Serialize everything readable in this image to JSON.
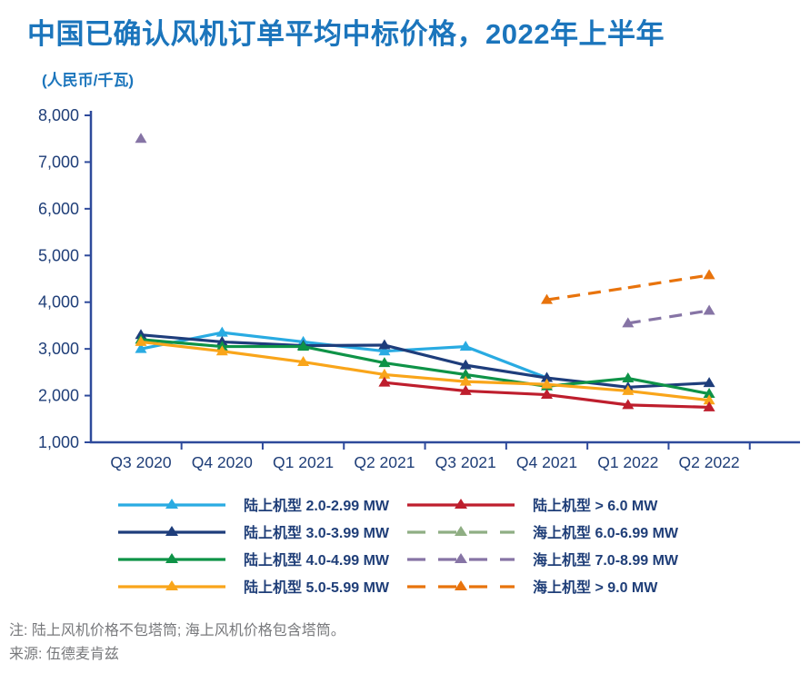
{
  "page": {
    "title": "中国已确认风机订单平均中标价格，2022年上半年",
    "subtitle": "(人民币/千瓦)",
    "note": "注: 陆上风机价格不包塔筒; 海上风机价格包含塔筒。",
    "source": "来源: 伍德麦肯兹"
  },
  "colors": {
    "title_blue": "#1B75BC",
    "axis_line": "#2E4A9B",
    "axis_text": "#1F3E78",
    "note_text": "#77787B"
  },
  "chart_data": {
    "type": "line",
    "title": "中国已确认风机订单平均中标价格，2022年上半年",
    "ylabel": "人民币/千瓦",
    "ylim": [
      1000,
      8000
    ],
    "ytick_step": 1000,
    "ytick_labels": [
      "1,000",
      "2,000",
      "3,000",
      "4,000",
      "5,000",
      "6,000",
      "7,000",
      "8,000"
    ],
    "grid": false,
    "legend_position": "bottom",
    "categories": [
      "Q3 2020",
      "Q4 2020",
      "Q1 2021",
      "Q2 2021",
      "Q3 2021",
      "Q4 2021",
      "Q1 2022",
      "Q2 2022"
    ],
    "series": [
      {
        "name": "陆上机型 2.0-2.99 MW",
        "color": "#29ABE2",
        "dash": false,
        "markers": "all",
        "values": [
          3000,
          3350,
          3150,
          2950,
          3050,
          2380,
          null,
          null
        ]
      },
      {
        "name": "陆上机型 3.0-3.99 MW",
        "color": "#1E3D7B",
        "dash": false,
        "markers": "all",
        "values": [
          3300,
          3150,
          3070,
          3080,
          2650,
          2380,
          2180,
          2270
        ]
      },
      {
        "name": "陆上机型 4.0-4.99 MW",
        "color": "#0E9347",
        "dash": false,
        "markers": "all",
        "values": [
          3200,
          3050,
          3050,
          2700,
          2450,
          2200,
          2370,
          2040
        ]
      },
      {
        "name": "陆上机型 5.0-5.99 MW",
        "color": "#F9A51A",
        "dash": false,
        "markers": "all",
        "values": [
          3150,
          2950,
          2720,
          2450,
          2300,
          2240,
          2100,
          1900
        ]
      },
      {
        "name": "陆上机型 > 6.0 MW",
        "color": "#BE1E2D",
        "dash": false,
        "markers": "all",
        "values": [
          null,
          null,
          null,
          2280,
          2100,
          2020,
          1800,
          1750
        ]
      },
      {
        "name": "海上机型 6.0-6.99 MW",
        "color": "#8FAE83",
        "dash": true,
        "markers": "all",
        "values": [
          null,
          null,
          null,
          null,
          null,
          null,
          null,
          null
        ]
      },
      {
        "name": "海上机型 7.0-8.99 MW",
        "color": "#8674A5",
        "dash": true,
        "markers": "all",
        "values": [
          7500,
          null,
          null,
          null,
          null,
          null,
          3550,
          3820
        ]
      },
      {
        "name": "海上机型 > 9.0 MW",
        "color": "#E8730C",
        "dash": true,
        "markers": "ends",
        "values": [
          null,
          null,
          null,
          null,
          null,
          4050,
          4310,
          4580
        ]
      }
    ]
  }
}
